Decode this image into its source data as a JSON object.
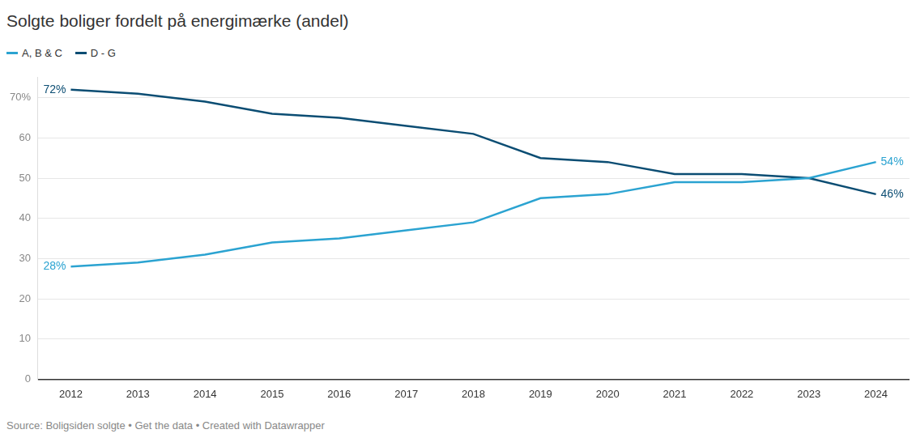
{
  "chart_data": {
    "type": "line",
    "title": "Solgte boliger fordelt på energimærke (andel)",
    "source": "Source: Boligsiden solgte • Get the data • Created with Datawrapper",
    "categories": [
      "2012",
      "2013",
      "2014",
      "2015",
      "2016",
      "2017",
      "2018",
      "2019",
      "2020",
      "2021",
      "2022",
      "2023",
      "2024"
    ],
    "series": [
      {
        "name": "A, B & C",
        "color": "#2ba3d1",
        "values": [
          28,
          29,
          31,
          34,
          35,
          37,
          39,
          45,
          46,
          49,
          49,
          50,
          54
        ],
        "value_labels": [
          "28%",
          null,
          null,
          null,
          null,
          null,
          null,
          null,
          null,
          null,
          null,
          null,
          "54%"
        ]
      },
      {
        "name": "D - G",
        "color": "#0b4d73",
        "values": [
          72,
          71,
          69,
          66,
          65,
          63,
          61,
          55,
          54,
          51,
          51,
          50,
          46
        ],
        "value_labels": [
          "72%",
          null,
          null,
          null,
          null,
          null,
          null,
          null,
          null,
          null,
          null,
          null,
          "46%"
        ]
      }
    ],
    "ylim": [
      0,
      75
    ],
    "yticks": [
      0,
      10,
      20,
      30,
      40,
      50,
      60,
      {
        "value": 70,
        "label": "70%"
      }
    ],
    "grid": true,
    "legend": "top-left",
    "data_labels": true
  }
}
